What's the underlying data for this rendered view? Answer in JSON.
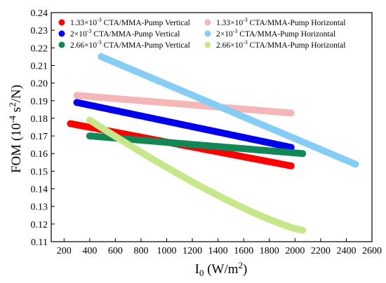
{
  "chart_data": {
    "type": "scatter",
    "xlabel": {
      "base": "I",
      "sub": "0",
      "rest": " (W/m",
      "sup": "2",
      "end": ")"
    },
    "ylabel": {
      "base": "FOM (10",
      "sup": "-4",
      "mid": " s",
      "sup2": "2",
      "end": "/N)"
    },
    "xlim": [
      100,
      2600
    ],
    "ylim": [
      0.11,
      0.24
    ],
    "xticks": [
      200,
      400,
      600,
      800,
      1000,
      1200,
      1400,
      1600,
      1800,
      2000,
      2200,
      2400,
      2600
    ],
    "yticks": [
      0.11,
      0.12,
      0.13,
      0.14,
      0.15,
      0.16,
      0.17,
      0.18,
      0.19,
      0.2,
      0.21,
      0.22,
      0.23,
      0.24
    ],
    "xtick_labels": [
      "200",
      "400",
      "600",
      "800",
      "1000",
      "1200",
      "1400",
      "1600",
      "1800",
      "2000",
      "2200",
      "2400",
      "2600"
    ],
    "ytick_labels": [
      "0.11",
      "0.12",
      "0.13",
      "0.14",
      "0.15",
      "0.16",
      "0.17",
      "0.18",
      "0.19",
      "0.20",
      "0.21",
      "0.22",
      "0.23",
      "0.24"
    ],
    "grid": false,
    "legend_position": "top",
    "series": [
      {
        "name": {
          "pre": "1.33×10",
          "sup": "-3",
          "post": " CTA/MMA-Pump Vertical"
        },
        "color": "#ff0000",
        "curve": "linear",
        "x": [
          250,
          1970
        ],
        "y": [
          0.177,
          0.153
        ]
      },
      {
        "name": {
          "pre": "1.33×10",
          "sup": "-3",
          "post": " CTA/MMA-Pump Horizontal"
        },
        "color": "#f4b6b6",
        "curve": "linear",
        "x": [
          300,
          1970
        ],
        "y": [
          0.193,
          0.183
        ]
      },
      {
        "name": {
          "pre": "2×10",
          "sup": "-3",
          "post": " CTA/MMA-Pump Vertical"
        },
        "color": "#0000ee",
        "curve": "linear",
        "x": [
          300,
          1970
        ],
        "y": [
          0.189,
          0.1635
        ]
      },
      {
        "name": {
          "pre": "2×10",
          "sup": "-3",
          "post": " CTA/MMA-Pump Horizontal"
        },
        "color": "#86cdf5",
        "curve": "linear",
        "x": [
          490,
          2470
        ],
        "y": [
          0.215,
          0.154
        ]
      },
      {
        "name": {
          "pre": "2.66×10",
          "sup": "-3",
          "post": " CTA/MMA-Pump Vertical"
        },
        "color": "#118855",
        "curve": "linear",
        "x": [
          400,
          2060
        ],
        "y": [
          0.17,
          0.16
        ]
      },
      {
        "name": {
          "pre": "2.66×10",
          "sup": "-3",
          "post": " CTA/MMA-Pump Horizontal"
        },
        "color": "#c6e88a",
        "curve": "convex",
        "x": [
          400,
          2060
        ],
        "y": [
          0.179,
          0.1165
        ]
      }
    ]
  }
}
